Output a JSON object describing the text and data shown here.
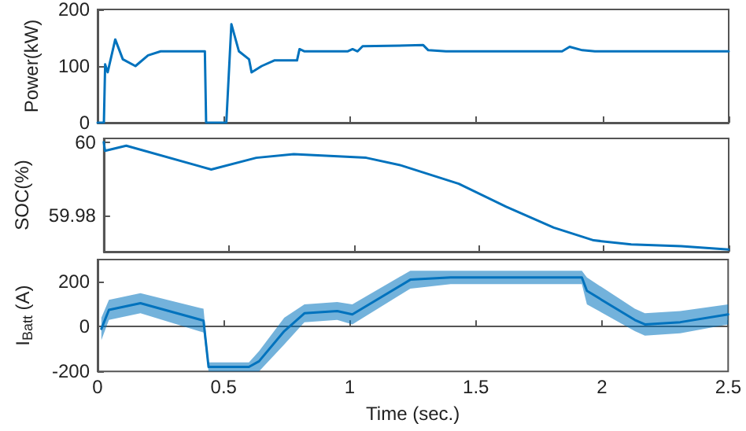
{
  "chart_data": [
    {
      "type": "line",
      "ylabel": "Power(kW)",
      "xlim": [
        0,
        2.5
      ],
      "xticks": [
        0,
        0.5,
        1,
        1.5,
        2,
        2.5
      ],
      "ylim": [
        0,
        200
      ],
      "yticks": [
        0,
        100,
        200
      ],
      "tick_labels": "y",
      "series": [
        {
          "color": "#0072bd",
          "x": [
            0,
            0.014,
            0.025,
            0.03,
            0.04,
            0.07,
            0.1,
            0.15,
            0.2,
            0.25,
            0.425,
            0.43,
            0.51,
            0.53,
            0.56,
            0.6,
            0.61,
            0.65,
            0.7,
            0.79,
            0.8,
            0.82,
            0.99,
            1.01,
            1.03,
            1.05,
            1.29,
            1.31,
            1.38,
            1.84,
            1.87,
            1.92,
            1.97,
            2.5
          ],
          "values": [
            0,
            0,
            0,
            103,
            89,
            147,
            112,
            100,
            119,
            126,
            126,
            0,
            0,
            174,
            126,
            112,
            89,
            100,
            110,
            110,
            130,
            126,
            126,
            130,
            126,
            135,
            137,
            128,
            126,
            126,
            134,
            128,
            126,
            126
          ]
        }
      ]
    },
    {
      "type": "line",
      "ylabel": "SOC(%)",
      "xlim": [
        0,
        2.5
      ],
      "xticks": [
        0,
        0.5,
        1,
        1.5,
        2,
        2.5
      ],
      "ylim": [
        59.97,
        60.001
      ],
      "yticks": [
        59.98,
        60
      ],
      "tick_labels": "y",
      "series": [
        {
          "color": "#0072bd",
          "x": [
            0,
            0.005,
            0.09,
            0.43,
            0.61,
            0.76,
            1.05,
            1.19,
            1.42,
            1.61,
            1.8,
            1.96,
            2.11,
            2.31,
            2.5
          ],
          "values": [
            60,
            59.9976,
            59.999,
            59.9925,
            59.9957,
            59.9967,
            59.9957,
            59.9936,
            59.9886,
            59.9823,
            59.9766,
            59.9731,
            59.972,
            59.9715,
            59.9706
          ]
        }
      ]
    },
    {
      "type": "line",
      "ylabel": "I$_{Batt}$ (A)",
      "xlabel": "Time (sec.)",
      "xlim": [
        0,
        2.5
      ],
      "xticks": [
        0,
        0.5,
        1,
        1.5,
        2,
        2.5
      ],
      "ylim": [
        -200,
        300
      ],
      "yticks": [
        -200,
        0,
        200
      ],
      "series": [
        {
          "color": "#0072bd",
          "x": [
            0.015,
            0.045,
            0.17,
            0.42,
            0.44,
            0.6,
            0.64,
            0.74,
            0.82,
            0.95,
            1.01,
            1.24,
            1.4,
            1.92,
            1.94,
            2.13,
            2.17,
            2.31,
            2.5
          ],
          "values": [
            -10,
            75,
            105,
            27,
            -180,
            -180,
            -155,
            -20,
            60,
            70,
            55,
            210,
            220,
            220,
            160,
            30,
            10,
            20,
            55
          ],
          "lower": [
            -60,
            30,
            60,
            -26,
            -200,
            -200,
            -200,
            -80,
            20,
            30,
            10,
            170,
            190,
            190,
            100,
            -20,
            -40,
            -30,
            10
          ],
          "upper": [
            40,
            120,
            150,
            80,
            -160,
            -160,
            -110,
            40,
            100,
            110,
            100,
            250,
            250,
            250,
            220,
            80,
            60,
            70,
            100
          ]
        }
      ]
    }
  ]
}
